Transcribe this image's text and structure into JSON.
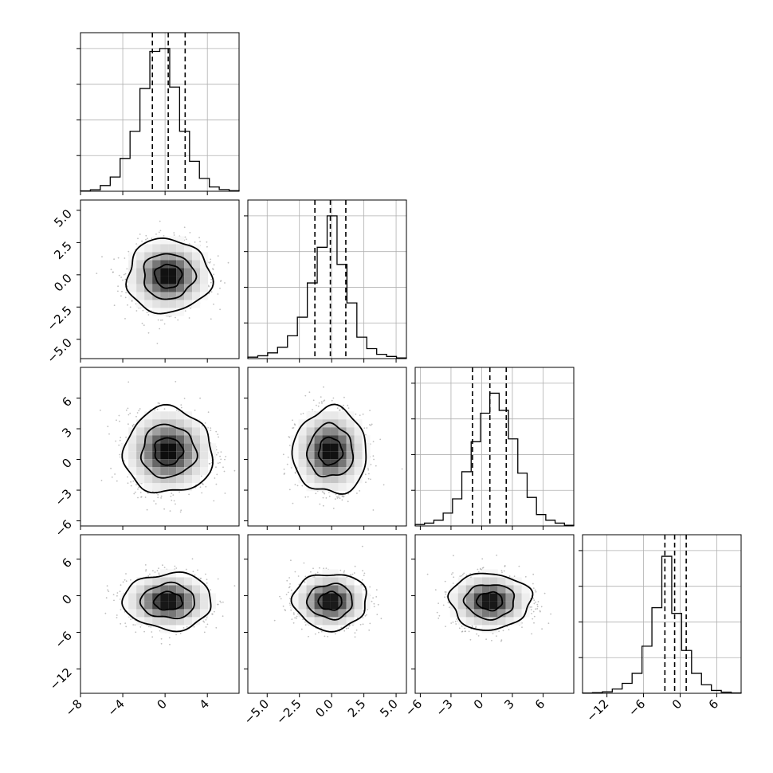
{
  "chart_data": {
    "type": "corner",
    "title": "",
    "dims": [
      {
        "range": [
          -8,
          7
        ],
        "ticks": [
          -8,
          -4,
          0,
          4
        ],
        "tick_labels": [
          "−8",
          "−4",
          "0",
          "4"
        ],
        "hist_counts": [
          0.003,
          0.01,
          0.04,
          0.1,
          0.23,
          0.42,
          0.72,
          0.98,
          1.0,
          0.73,
          0.42,
          0.21,
          0.09,
          0.03,
          0.012,
          0.004
        ],
        "quantiles": [
          -1.2,
          0.3,
          1.9
        ]
      },
      {
        "range": [
          -6.5,
          5.8
        ],
        "ticks": [
          -5.0,
          -2.5,
          0.0,
          2.5,
          5.0
        ],
        "tick_labels": [
          "−5.0",
          "−2.5",
          "0.0",
          "2.5",
          "5.0"
        ],
        "hist_counts": [
          0.01,
          0.02,
          0.04,
          0.08,
          0.16,
          0.29,
          0.53,
          0.78,
          1.0,
          0.66,
          0.39,
          0.15,
          0.07,
          0.03,
          0.015,
          0.005
        ],
        "quantiles": [
          -1.3,
          -0.1,
          1.1
        ]
      },
      {
        "range": [
          -6.5,
          9
        ],
        "ticks": [
          -6,
          -3,
          0,
          3,
          6
        ],
        "tick_labels": [
          "−6",
          "−3",
          "0",
          "3",
          "6"
        ],
        "hist_counts": [
          0.01,
          0.02,
          0.04,
          0.09,
          0.19,
          0.38,
          0.59,
          0.79,
          0.93,
          0.81,
          0.61,
          0.37,
          0.2,
          0.08,
          0.04,
          0.02,
          0.005
        ],
        "quantiles": [
          -0.9,
          0.8,
          2.4
        ]
      },
      {
        "range": [
          -16,
          10
        ],
        "ticks": [
          -12,
          -6,
          0,
          6
        ],
        "tick_labels": [
          "−12",
          "−6",
          "0",
          "6"
        ],
        "hist_counts": [
          0.002,
          0.005,
          0.01,
          0.03,
          0.07,
          0.14,
          0.33,
          0.6,
          0.96,
          0.56,
          0.3,
          0.14,
          0.06,
          0.02,
          0.008,
          0.003
        ],
        "quantiles": [
          -2.5,
          -0.9,
          1.0
        ]
      }
    ],
    "pairs": [
      {
        "row": 1,
        "col": 0,
        "mean": [
          0.3,
          -0.1
        ],
        "sd": [
          1.8,
          1.3
        ],
        "levels": [
          0.7,
          1.35,
          2.2
        ]
      },
      {
        "row": 2,
        "col": 0,
        "mean": [
          0.3,
          0.8
        ],
        "sd": [
          1.9,
          1.9
        ],
        "levels": [
          0.7,
          1.35,
          2.2
        ]
      },
      {
        "row": 2,
        "col": 1,
        "mean": [
          -0.1,
          0.8
        ],
        "sd": [
          1.3,
          1.9
        ],
        "levels": [
          0.7,
          1.35,
          2.2
        ]
      },
      {
        "row": 3,
        "col": 0,
        "mean": [
          0.3,
          -0.9
        ],
        "sd": [
          1.9,
          2.1
        ],
        "levels": [
          0.7,
          1.35,
          2.2
        ]
      },
      {
        "row": 3,
        "col": 1,
        "mean": [
          -0.1,
          -0.9
        ],
        "sd": [
          1.3,
          2.1
        ],
        "levels": [
          0.7,
          1.35,
          2.2
        ]
      },
      {
        "row": 3,
        "col": 2,
        "mean": [
          0.8,
          -0.9
        ],
        "sd": [
          1.8,
          2.1
        ],
        "levels": [
          0.7,
          1.35,
          2.2
        ]
      }
    ]
  }
}
